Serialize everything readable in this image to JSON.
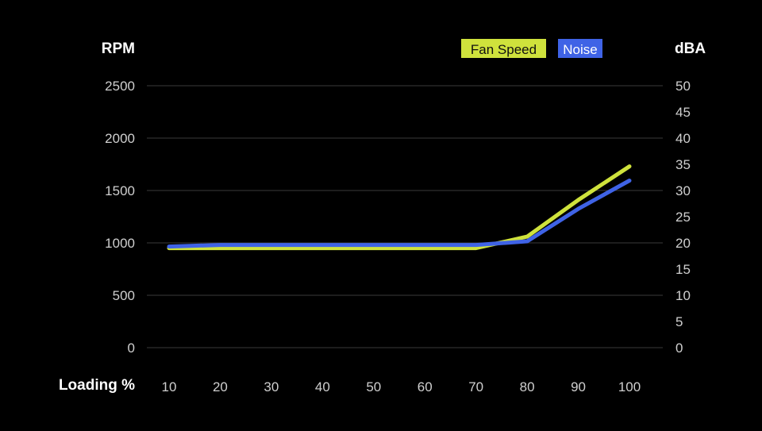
{
  "chart_data": {
    "type": "line",
    "x": [
      10,
      20,
      30,
      40,
      50,
      60,
      70,
      80,
      90,
      100
    ],
    "xlabel": "Loading %",
    "ylabel_left": "RPM",
    "ylabel_right": "dBA",
    "ylim_left": [
      0,
      2500
    ],
    "ylim_right": [
      0,
      50
    ],
    "yticks_left": [
      0,
      500,
      1000,
      1500,
      2000,
      2500
    ],
    "yticks_right": [
      0,
      5,
      10,
      15,
      20,
      25,
      30,
      35,
      40,
      45,
      50
    ],
    "grid": true,
    "legend_position": "top-right",
    "series": [
      {
        "name": "Fan Speed",
        "axis": "left",
        "color": "#cfe23c",
        "values": [
          950,
          950,
          950,
          950,
          950,
          950,
          950,
          1060,
          1410,
          1730
        ]
      },
      {
        "name": "Noise",
        "axis": "right",
        "color": "#3f63e6",
        "values": [
          19.3,
          19.6,
          19.6,
          19.6,
          19.6,
          19.6,
          19.6,
          20.3,
          26.5,
          31.9
        ]
      }
    ]
  }
}
